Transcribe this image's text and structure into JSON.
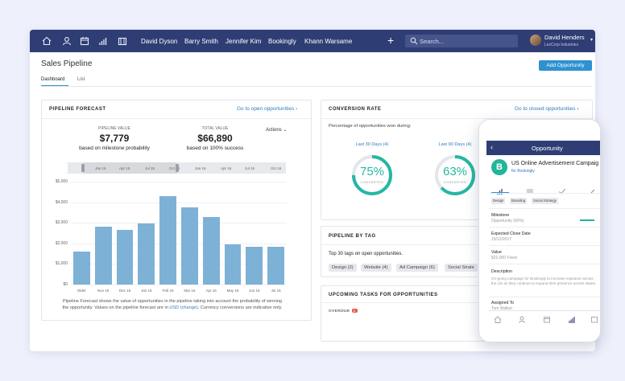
{
  "nav": {
    "icons": [
      "home-icon",
      "person-icon",
      "calendar-icon",
      "bar-chart-icon",
      "folder-icon"
    ],
    "tabs": [
      "David Dyson",
      "Barry Smith",
      "Jennifer Kim",
      "Bookingly",
      "Khann Warsame"
    ],
    "plus": "+",
    "search_placeholder": "Search...",
    "user_name": "David Henders",
    "user_company": "LexCorp Industries"
  },
  "page": {
    "title": "Sales Pipeline",
    "add_button": "Add Opportunity",
    "tabs": [
      "Dashboard",
      "List"
    ],
    "accent": "#2f91d0"
  },
  "forecast": {
    "heading": "PIPELINE FORECAST",
    "link": "Go to open opportunities ›",
    "pipeline_label": "PIPELINE VALUE",
    "pipeline_value": "$7,779",
    "pipeline_sub": "based on milestone probability",
    "total_label": "TOTAL VALUE",
    "total_value": "$66,890",
    "total_sub": "based on 100% success",
    "actions": "Actions ⌄",
    "timeline_labels": [
      "Jan 15",
      "Apr 15",
      "Jul 15",
      "Oct 15",
      "Jan 16",
      "Apr 16",
      "Jul 16",
      "Oct 16"
    ],
    "note_before": "Pipeline Forecast shows the value of opportunities in the pipeline taking into account the probability of winning the opportunity. Values on the pipeline forecast are in ",
    "note_currency": "USD",
    "note_change": "(change)",
    "note_after": ". Currency conversions are indicative only."
  },
  "chart_data": {
    "type": "bar",
    "categories": [
      "Older",
      "Nov 15",
      "Dec 15",
      "Jan 16",
      "Feb 16",
      "Mar 16",
      "Apr 16",
      "May 16",
      "Jun 16",
      "Jul 16"
    ],
    "values": [
      1600,
      2800,
      2650,
      2950,
      4300,
      3750,
      3300,
      1950,
      1850,
      1850
    ],
    "y_ticks": [
      "$0",
      "$1,000",
      "$2,000",
      "$3,000",
      "$4,000",
      "$5,000"
    ],
    "ylim": [
      0,
      5000
    ],
    "bar_color": "#7eb1d6",
    "title": "",
    "xlabel": "",
    "ylabel": ""
  },
  "conversion": {
    "heading": "CONVERSION RATE",
    "link": "Go to closed opportunities ›",
    "subtitle": "Percentage of opportunities won during:",
    "gauges": [
      {
        "label": "Last 30 Days (4)",
        "value": "75%",
        "percent": 75,
        "sub": "CONVERTED"
      },
      {
        "label": "Last 90 Days (4)",
        "value": "63%",
        "percent": 63,
        "sub": "CONVERTED"
      }
    ],
    "gauge_color": "#26b7a4"
  },
  "pipeline_tag": {
    "heading": "PIPELINE BY TAG",
    "subtitle": "Top 30 tags on open opportunities.",
    "tags": [
      "Design (2)",
      "Website (4)",
      "Ad Campaign (6)",
      "Social Strate"
    ]
  },
  "tasks": {
    "heading": "UPCOMING TASKS FOR OPPORTUNITIES",
    "overdue": "OVERDUE",
    "overdue_count": "2"
  },
  "phone": {
    "bar_title": "Opportunity",
    "back": "‹",
    "logo_letter": "B",
    "name": "US Online Advertisement Campaig",
    "for_label": "for Bookingly",
    "chips": [
      "Design",
      "Branding",
      "Social Strategy"
    ],
    "fields": [
      {
        "label": "Milestone",
        "value": "Opportunity (60%)"
      },
      {
        "label": "Expected Close Date",
        "value": "15/12/2017"
      },
      {
        "label": "Value",
        "value": "$22,000 Fixed"
      },
      {
        "label": "Description",
        "value": "On-going campaign for Bookingly to increase exposure across the US as they continue to expand their presence across states."
      },
      {
        "label": "Assigned To",
        "value": "Tom Walker"
      }
    ]
  }
}
